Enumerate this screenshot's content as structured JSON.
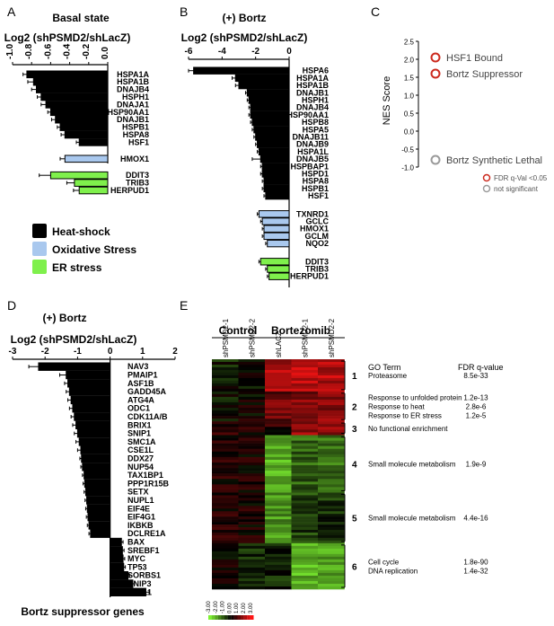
{
  "panel_labels": [
    "A",
    "B",
    "C",
    "D",
    "E"
  ],
  "chart_data": [
    {
      "id": "A",
      "type": "bar",
      "orientation": "horizontal",
      "title": "Basal state",
      "xlabel": "Log2 (shPSMD2/shLacZ)",
      "xlim": [
        -1.0,
        0.0
      ],
      "ticks": [
        -1.0,
        -0.8,
        -0.6,
        -0.4,
        -0.2,
        0.0
      ],
      "tick_labels": [
        "-1.0",
        "-0.8",
        "-0.6",
        "-0.4",
        "-0.2",
        "0.0"
      ],
      "groups": [
        {
          "category": "Heat-shock",
          "genes": [
            "HSPA1A",
            "HSPA1B",
            "DNAJB4",
            "HSPH1",
            "DNAJA1",
            "HSP90AA1",
            "DNAJB1",
            "HSPB1",
            "HSPA8",
            "HSF1"
          ],
          "values": [
            -0.85,
            -0.78,
            -0.75,
            -0.7,
            -0.65,
            -0.6,
            -0.55,
            -0.5,
            -0.45,
            -0.3
          ],
          "errors": [
            0.04,
            0.06,
            0.05,
            0.04,
            0.05,
            0.03,
            0.04,
            0.03,
            0.04,
            0.03
          ]
        },
        {
          "category": "Oxidative Stress",
          "genes": [
            "HMOX1"
          ],
          "values": [
            -0.45
          ],
          "errors": [
            0.05
          ]
        },
        {
          "category": "ER stress",
          "genes": [
            "DDIT3",
            "TRIB3",
            "HERPUD1"
          ],
          "values": [
            -0.6,
            -0.35,
            -0.3
          ],
          "errors": [
            0.12,
            0.08,
            0.06
          ]
        }
      ]
    },
    {
      "id": "B",
      "type": "bar",
      "orientation": "horizontal",
      "title": "(+) Bortz",
      "xlabel": "Log2 (shPSMD2/shLacZ)",
      "xlim": [
        -6,
        0
      ],
      "ticks": [
        -6,
        -4,
        -2,
        0
      ],
      "tick_labels": [
        "-6",
        "-4",
        "-2",
        "0"
      ],
      "groups": [
        {
          "category": "Heat-shock",
          "genes": [
            "HSPA6",
            "HSPA1A",
            "HSPA1B",
            "DNAJB1",
            "HSPH1",
            "DNAJB4",
            "HSP90AA1",
            "HSPB8",
            "HSPA5",
            "DNAJB11",
            "DNAJB9",
            "HSPA1L",
            "DNAJB5",
            "HSPBAP1",
            "HSPD1",
            "HSPA8",
            "HSPB1",
            "HSF1"
          ],
          "values": [
            -5.7,
            -3.2,
            -3.0,
            -2.5,
            -2.4,
            -2.3,
            -2.3,
            -2.2,
            -2.1,
            -2.0,
            -1.9,
            -1.8,
            -1.7,
            -1.6,
            -1.6,
            -1.5,
            -1.5,
            -1.4
          ],
          "errors": [
            0.3,
            0.2,
            0.2,
            0.1,
            0.1,
            0.1,
            0.1,
            0.1,
            0.1,
            0.1,
            0.1,
            0.1,
            0.5,
            0.1,
            0.1,
            0.1,
            0.1,
            0.1
          ]
        },
        {
          "category": "Oxidative Stress",
          "genes": [
            "TXNRD1",
            "GCLC",
            "HMOX1",
            "GCLM",
            "NQO2"
          ],
          "values": [
            -1.8,
            -1.6,
            -1.5,
            -1.5,
            -1.3
          ],
          "errors": [
            0.1,
            0.1,
            0.1,
            0.1,
            0.1
          ]
        },
        {
          "category": "ER stress",
          "genes": [
            "DDIT3",
            "TRIB3",
            "HERPUD1"
          ],
          "values": [
            -1.7,
            -1.3,
            -1.2
          ],
          "errors": [
            0.1,
            0.1,
            0.1
          ]
        }
      ]
    },
    {
      "id": "C",
      "type": "scatter",
      "ylabel": "NES Score",
      "ylim": [
        -1.0,
        2.5
      ],
      "ticks": [
        2.5,
        2.0,
        1.5,
        1.0,
        0.5,
        0.0,
        -0.5,
        -1.0
      ],
      "tick_labels": [
        "2.5",
        "2.0",
        "1.5",
        "1.0",
        "0.5",
        "0.0",
        "-0.5",
        "-1.0"
      ],
      "points": [
        {
          "label": "HSF1 Bound",
          "y": 2.05,
          "significant": true
        },
        {
          "label": "Bortz Suppressor",
          "y": 1.6,
          "significant": true
        },
        {
          "label": "Bortz Synthetic Lethal",
          "y": -0.8,
          "significant": false
        }
      ],
      "legend": [
        {
          "label": "FDR q-Val <0.05",
          "significant": true
        },
        {
          "label": "not significant",
          "significant": false
        }
      ]
    },
    {
      "id": "D",
      "type": "bar",
      "orientation": "horizontal",
      "title": "(+) Bortz",
      "xlabel": "Log2 (shPSMD2/shLacZ)",
      "footer": "Bortz suppressor genes",
      "xlim": [
        -3,
        2
      ],
      "ticks": [
        -3,
        -2,
        -1,
        0,
        1,
        2
      ],
      "tick_labels": [
        "-3",
        "-2",
        "-1",
        "0",
        "1",
        "2"
      ],
      "genes": [
        "NAV3",
        "PMAIP1",
        "ASF1B",
        "GADD45A",
        "ATG4A",
        "ODC1",
        "CDK11A/B",
        "BRIX1",
        "SNIP1",
        "SMC1A",
        "CSE1L",
        "DDX27",
        "NUP54",
        "TAX1BP1",
        "PPP1R15B",
        "SETX",
        "NUPL1",
        "EIF4E",
        "EIF4G1",
        "IKBKB",
        "DCLRE1A",
        "BAX",
        "SREBF1",
        "MYC",
        "TP53",
        "SORBS1",
        "BNIP3",
        "FUT11"
      ],
      "values": [
        -2.2,
        -1.35,
        -1.3,
        -1.25,
        -1.2,
        -1.15,
        -1.1,
        -1.05,
        -1.0,
        -0.95,
        -0.9,
        -0.88,
        -0.85,
        -0.8,
        -0.78,
        -0.75,
        -0.72,
        -0.7,
        -0.68,
        -0.65,
        -0.6,
        0.35,
        0.38,
        0.4,
        0.42,
        0.55,
        0.7,
        1.1
      ],
      "errors": [
        0.3,
        0.2,
        0.1,
        0.1,
        0.1,
        0.1,
        0.1,
        0.1,
        0.1,
        0.1,
        0.1,
        0.05,
        0.05,
        0.05,
        0.05,
        0.05,
        0.05,
        0.05,
        0.05,
        0.05,
        0.05,
        0.05,
        0.05,
        0.05,
        0.05,
        0.05,
        0.05,
        0.1
      ]
    },
    {
      "id": "E",
      "type": "heatmap",
      "group_labels": [
        "Control",
        "Bortezomib"
      ],
      "columns": [
        "shPSMD2-1",
        "shPSMD2-2",
        "shLACZ",
        "shPSMD2-1",
        "shPSMD2-2"
      ],
      "scale_ticks": [
        "-3.00",
        "-2.00",
        "-1.00",
        "0.00",
        "1.00",
        "2.00",
        "3.00"
      ],
      "go_header": "GO Term",
      "fdr_header": "FDR q-value",
      "clusters": [
        {
          "id": "1",
          "terms": [
            {
              "term": "Proteasome",
              "fdr": "8.5e-33"
            }
          ],
          "block": [
            -0.3,
            0.0,
            2.0,
            2.2,
            2.1
          ]
        },
        {
          "id": "2",
          "terms": [
            {
              "term": "Response to unfolded protein",
              "fdr": "1.2e-13"
            },
            {
              "term": "Response to heat",
              "fdr": "2.8e-6"
            },
            {
              "term": "Response to ER stress",
              "fdr": "1.2e-5"
            }
          ],
          "block": [
            -0.2,
            0.1,
            1.2,
            1.5,
            1.6
          ]
        },
        {
          "id": "3",
          "terms": [
            {
              "term": "No functional enrichment",
              "fdr": ""
            }
          ],
          "block": [
            0.5,
            0.3,
            0.4,
            1.8,
            1.6
          ]
        },
        {
          "id": "4",
          "terms": [
            {
              "term": "Small molecule metabolism",
              "fdr": "1.9e-9"
            }
          ],
          "block": [
            0.3,
            0.2,
            -2.2,
            -1.2,
            -1.4
          ]
        },
        {
          "id": "5",
          "terms": [
            {
              "term": "Small molecule metabolism",
              "fdr": "4.4e-16"
            }
          ],
          "block": [
            0.4,
            0.2,
            -1.8,
            -0.8,
            -0.6
          ]
        },
        {
          "id": "6",
          "terms": [
            {
              "term": "Cell cycle",
              "fdr": "1.8e-90"
            },
            {
              "term": "DNA replication",
              "fdr": "1.4e-32"
            }
          ],
          "block": [
            0.0,
            -0.6,
            -0.5,
            -2.2,
            -2.0
          ]
        }
      ]
    }
  ],
  "legend": {
    "items": [
      {
        "label": "Heat-shock",
        "color": "#000000"
      },
      {
        "label": "Oxidative Stress",
        "color": "#a9c8ee"
      },
      {
        "label": "ER stress",
        "color": "#7ff04c"
      }
    ]
  },
  "colors": {
    "sig": "#cc2a1e",
    "nonsig": "#9a9a9a",
    "heat_low": "#7df230",
    "heat_mid": "#000000",
    "heat_high": "#ff1a1a"
  }
}
